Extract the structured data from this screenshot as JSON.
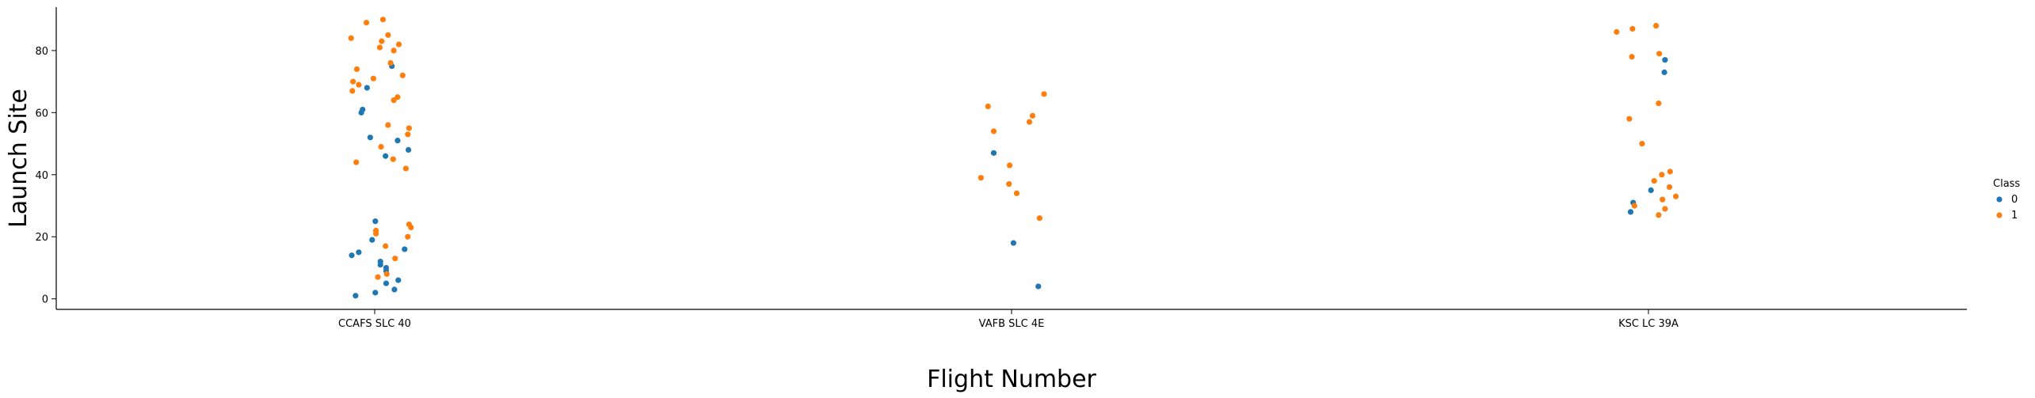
{
  "chart_data": {
    "type": "scatter",
    "title": "",
    "xlabel": "Flight Number",
    "ylabel": "Launch Site",
    "categories": [
      "CCAFS SLC 40",
      "VAFB SLC 4E",
      "KSC LC 39A"
    ],
    "yticks": [
      0,
      20,
      40,
      60,
      80
    ],
    "ylim": [
      -3.4,
      94
    ],
    "grid": false,
    "legend": {
      "title": "Class",
      "placement": "right",
      "entries": [
        {
          "label": "0",
          "color": "#1f77b4"
        },
        {
          "label": "1",
          "color": "#ff7f0e"
        }
      ]
    },
    "series": [
      {
        "name": "0",
        "color": "#1f77b4",
        "points": [
          {
            "cat": 0,
            "jitter": -0.03,
            "y": 1
          },
          {
            "cat": 0,
            "jitter": -0.036,
            "y": 14
          },
          {
            "cat": 0,
            "jitter": -0.025,
            "y": 15
          },
          {
            "cat": 0,
            "jitter": -0.004,
            "y": 19
          },
          {
            "cat": 0,
            "jitter": 0.001,
            "y": 25
          },
          {
            "cat": 0,
            "jitter": 0.001,
            "y": 2
          },
          {
            "cat": 0,
            "jitter": 0.009,
            "y": 11
          },
          {
            "cat": 0,
            "jitter": 0.009,
            "y": 12
          },
          {
            "cat": 0,
            "jitter": 0.018,
            "y": 10
          },
          {
            "cat": 0,
            "jitter": 0.018,
            "y": 9
          },
          {
            "cat": 0,
            "jitter": 0.018,
            "y": 5
          },
          {
            "cat": 0,
            "jitter": 0.031,
            "y": 3
          },
          {
            "cat": 0,
            "jitter": 0.037,
            "y": 6
          },
          {
            "cat": 0,
            "jitter": 0.047,
            "y": 16
          },
          {
            "cat": 0,
            "jitter": -0.021,
            "y": 60
          },
          {
            "cat": 0,
            "jitter": -0.019,
            "y": 61
          },
          {
            "cat": 0,
            "jitter": -0.012,
            "y": 68
          },
          {
            "cat": 0,
            "jitter": -0.007,
            "y": 52
          },
          {
            "cat": 0,
            "jitter": 0.017,
            "y": 46
          },
          {
            "cat": 0,
            "jitter": 0.036,
            "y": 51
          },
          {
            "cat": 0,
            "jitter": 0.053,
            "y": 48
          },
          {
            "cat": 0,
            "jitter": 0.027,
            "y": 75
          },
          {
            "cat": 1,
            "jitter": -0.028,
            "y": 47
          },
          {
            "cat": 1,
            "jitter": 0.003,
            "y": 18
          },
          {
            "cat": 1,
            "jitter": 0.042,
            "y": 4
          },
          {
            "cat": 2,
            "jitter": -0.028,
            "y": 28
          },
          {
            "cat": 2,
            "jitter": -0.024,
            "y": 31
          },
          {
            "cat": 2,
            "jitter": 0.004,
            "y": 35
          },
          {
            "cat": 2,
            "jitter": 0.026,
            "y": 77
          },
          {
            "cat": 2,
            "jitter": 0.025,
            "y": 73
          }
        ]
      },
      {
        "name": "1",
        "color": "#ff7f0e",
        "points": [
          {
            "cat": 0,
            "jitter": -0.037,
            "y": 84
          },
          {
            "cat": 0,
            "jitter": -0.013,
            "y": 89
          },
          {
            "cat": 0,
            "jitter": 0.013,
            "y": 90
          },
          {
            "cat": 0,
            "jitter": 0.021,
            "y": 85
          },
          {
            "cat": 0,
            "jitter": 0.008,
            "y": 81
          },
          {
            "cat": 0,
            "jitter": 0.011,
            "y": 83
          },
          {
            "cat": 0,
            "jitter": 0.03,
            "y": 80
          },
          {
            "cat": 0,
            "jitter": 0.038,
            "y": 82
          },
          {
            "cat": 0,
            "jitter": 0.025,
            "y": 76
          },
          {
            "cat": 0,
            "jitter": -0.028,
            "y": 74
          },
          {
            "cat": 0,
            "jitter": -0.034,
            "y": 70
          },
          {
            "cat": 0,
            "jitter": -0.025,
            "y": 69
          },
          {
            "cat": 0,
            "jitter": -0.035,
            "y": 67
          },
          {
            "cat": 0,
            "jitter": -0.002,
            "y": 71
          },
          {
            "cat": 0,
            "jitter": 0.044,
            "y": 72
          },
          {
            "cat": 0,
            "jitter": 0.03,
            "y": 64
          },
          {
            "cat": 0,
            "jitter": 0.036,
            "y": 65
          },
          {
            "cat": 0,
            "jitter": 0.021,
            "y": 56
          },
          {
            "cat": 0,
            "jitter": 0.052,
            "y": 53
          },
          {
            "cat": 0,
            "jitter": 0.054,
            "y": 55
          },
          {
            "cat": 0,
            "jitter": 0.01,
            "y": 49
          },
          {
            "cat": 0,
            "jitter": 0.029,
            "y": 45
          },
          {
            "cat": 0,
            "jitter": -0.029,
            "y": 44
          },
          {
            "cat": 0,
            "jitter": 0.049,
            "y": 42
          },
          {
            "cat": 0,
            "jitter": 0.054,
            "y": 24
          },
          {
            "cat": 0,
            "jitter": 0.057,
            "y": 23
          },
          {
            "cat": 0,
            "jitter": 0.052,
            "y": 20
          },
          {
            "cat": 0,
            "jitter": 0.002,
            "y": 22
          },
          {
            "cat": 0,
            "jitter": 0.002,
            "y": 21
          },
          {
            "cat": 0,
            "jitter": 0.017,
            "y": 17
          },
          {
            "cat": 0,
            "jitter": 0.032,
            "y": 13
          },
          {
            "cat": 0,
            "jitter": 0.005,
            "y": 7
          },
          {
            "cat": 0,
            "jitter": 0.019,
            "y": 8
          },
          {
            "cat": 1,
            "jitter": -0.037,
            "y": 62
          },
          {
            "cat": 1,
            "jitter": -0.028,
            "y": 54
          },
          {
            "cat": 1,
            "jitter": -0.003,
            "y": 43
          },
          {
            "cat": 1,
            "jitter": -0.048,
            "y": 39
          },
          {
            "cat": 1,
            "jitter": -0.004,
            "y": 37
          },
          {
            "cat": 1,
            "jitter": 0.008,
            "y": 34
          },
          {
            "cat": 1,
            "jitter": 0.033,
            "y": 59
          },
          {
            "cat": 1,
            "jitter": 0.028,
            "y": 57
          },
          {
            "cat": 1,
            "jitter": 0.051,
            "y": 66
          },
          {
            "cat": 1,
            "jitter": 0.044,
            "y": 26
          },
          {
            "cat": 2,
            "jitter": -0.05,
            "y": 86
          },
          {
            "cat": 2,
            "jitter": -0.025,
            "y": 87
          },
          {
            "cat": 2,
            "jitter": 0.012,
            "y": 88
          },
          {
            "cat": 2,
            "jitter": -0.026,
            "y": 78
          },
          {
            "cat": 2,
            "jitter": 0.017,
            "y": 79
          },
          {
            "cat": 2,
            "jitter": -0.03,
            "y": 58
          },
          {
            "cat": 2,
            "jitter": 0.016,
            "y": 63
          },
          {
            "cat": 2,
            "jitter": -0.01,
            "y": 50
          },
          {
            "cat": 2,
            "jitter": 0.009,
            "y": 38
          },
          {
            "cat": 2,
            "jitter": 0.021,
            "y": 40
          },
          {
            "cat": 2,
            "jitter": 0.034,
            "y": 41
          },
          {
            "cat": 2,
            "jitter": 0.033,
            "y": 36
          },
          {
            "cat": 2,
            "jitter": 0.043,
            "y": 33
          },
          {
            "cat": 2,
            "jitter": 0.022,
            "y": 32
          },
          {
            "cat": 2,
            "jitter": 0.016,
            "y": 27
          },
          {
            "cat": 2,
            "jitter": 0.026,
            "y": 29
          },
          {
            "cat": 2,
            "jitter": -0.022,
            "y": 30
          }
        ]
      }
    ]
  }
}
